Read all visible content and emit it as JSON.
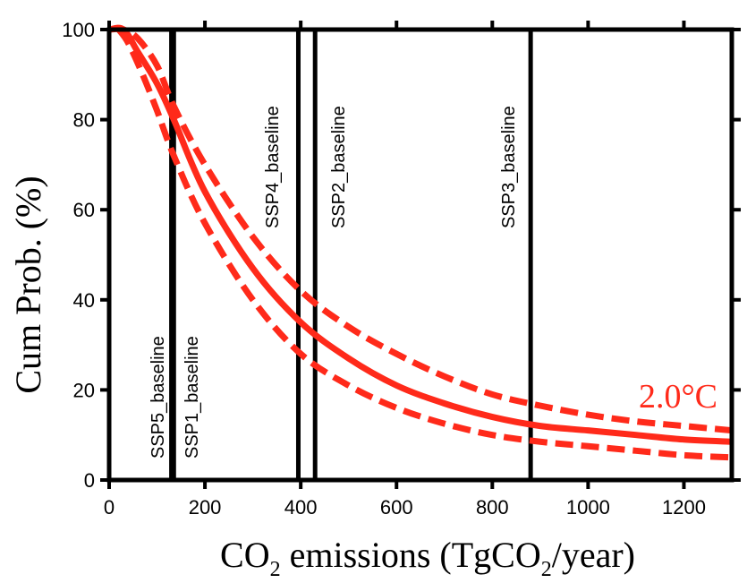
{
  "chart_data": {
    "type": "line",
    "xlabel_main": "CO",
    "xlabel_sub": "2",
    "xlabel_mid": " emissions (TgCO",
    "xlabel_sub2": "2",
    "xlabel_end": "/year)",
    "ylabel": "Cum Prob. (%)",
    "xlim": [
      0,
      1300
    ],
    "ylim": [
      0,
      100
    ],
    "xticks": [
      "0",
      "200",
      "400",
      "600",
      "800",
      "1000",
      "1200"
    ],
    "xtick_values": [
      0,
      200,
      400,
      600,
      800,
      1000,
      1200
    ],
    "yticks": [
      "0",
      "20",
      "40",
      "60",
      "80",
      "100"
    ],
    "ytick_values": [
      0,
      20,
      40,
      60,
      80,
      100
    ],
    "annotation": "2.0°C",
    "colors": {
      "curve": "#ff2a1a",
      "axes": "#000000"
    },
    "vertical_lines": [
      {
        "x": 130,
        "label": "SSP5_baseline"
      },
      {
        "x": 135,
        "label": "SSP1_baseline"
      },
      {
        "x": 395,
        "label": "SSP4_baseline"
      },
      {
        "x": 430,
        "label": "SSP2_baseline"
      },
      {
        "x": 880,
        "label": "SSP3_baseline"
      }
    ],
    "series": [
      {
        "style": "solid",
        "x": [
          0,
          30,
          60,
          100,
          135,
          200,
          300,
          400,
          500,
          600,
          700,
          800,
          900,
          1000,
          1100,
          1200,
          1300
        ],
        "y": [
          100,
          100,
          95,
          88,
          80,
          64,
          47,
          35,
          27,
          21,
          17,
          14,
          12,
          11,
          10,
          9,
          8.5
        ]
      },
      {
        "style": "dashed",
        "x": [
          0,
          30,
          60,
          100,
          135,
          200,
          300,
          400,
          500,
          600,
          700,
          800,
          900,
          1000,
          1100,
          1200,
          1300
        ],
        "y": [
          100,
          100,
          98,
          92,
          83,
          70,
          54,
          42,
          34,
          28,
          23,
          19,
          16.5,
          14.5,
          13,
          12,
          11
        ]
      },
      {
        "style": "dashed",
        "x": [
          20,
          40,
          70,
          100,
          135,
          200,
          300,
          400,
          500,
          600,
          700,
          800,
          900,
          1000,
          1100,
          1200,
          1300
        ],
        "y": [
          100,
          97,
          90,
          82,
          72,
          57,
          40,
          28,
          21,
          16,
          12.5,
          10,
          8.5,
          7.5,
          6.5,
          5.5,
          5
        ]
      }
    ]
  }
}
